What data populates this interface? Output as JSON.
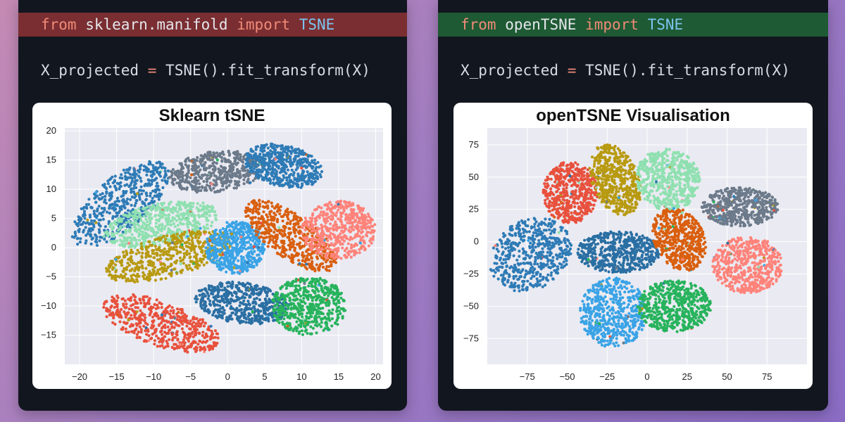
{
  "left": {
    "import_line": {
      "from": "from",
      "module": "sklearn.manifold",
      "import": "import",
      "cls": "TSNE"
    },
    "code_line": {
      "var": "X_projected",
      "eq": "=",
      "expr": "TSNE().fit_transform(X)"
    },
    "highlight_color": "#7a2e31"
  },
  "right": {
    "import_line": {
      "from": "from",
      "module": "openTSNE",
      "import": "import",
      "cls": "TSNE"
    },
    "code_line": {
      "var": "X_projected",
      "eq": "=",
      "expr": "TSNE().fit_transform(X)"
    },
    "highlight_color": "#1e5a33"
  },
  "chart_data": [
    {
      "type": "scatter",
      "title": "Sklearn tSNE",
      "xlabel": "",
      "ylabel": "",
      "xlim": [
        -22,
        21
      ],
      "ylim": [
        -20,
        20.5
      ],
      "xticks": [
        -20,
        -15,
        -10,
        -5,
        0,
        5,
        10,
        15,
        20
      ],
      "yticks": [
        20,
        15,
        10,
        5,
        0,
        -5,
        -10,
        -15
      ],
      "grid": true,
      "clusters": [
        {
          "color": "#2e7bb6",
          "center": [
            -14.5,
            7.5
          ],
          "radius": [
            4,
            9
          ],
          "angle": -40
        },
        {
          "color": "#6c7a8a",
          "center": [
            -1.5,
            13
          ],
          "radius": [
            6.5,
            3.5
          ],
          "angle": 10
        },
        {
          "color": "#2e7bb6",
          "center": [
            7.5,
            14
          ],
          "radius": [
            5.5,
            3.5
          ],
          "angle": -20
        },
        {
          "color": "#8fe0b0",
          "center": [
            -9,
            4
          ],
          "radius": [
            8,
            3.5
          ],
          "angle": 15
        },
        {
          "color": "#b89a10",
          "center": [
            -8,
            -1.5
          ],
          "radius": [
            9,
            3.5
          ],
          "angle": 20
        },
        {
          "color": "#3aa3e6",
          "center": [
            1,
            0
          ],
          "radius": [
            4,
            4.5
          ],
          "angle": 0
        },
        {
          "color": "#d95f0e",
          "center": [
            8.5,
            2
          ],
          "radius": [
            8,
            3.5
          ],
          "angle": -45
        },
        {
          "color": "#ff837a",
          "center": [
            15,
            3
          ],
          "radius": [
            5,
            5
          ],
          "angle": 0
        },
        {
          "color": "#2a6fa3",
          "center": [
            2,
            -9.5
          ],
          "radius": [
            6.5,
            3.5
          ],
          "angle": -10
        },
        {
          "color": "#27b35c",
          "center": [
            11,
            -10
          ],
          "radius": [
            5,
            5
          ],
          "angle": 0
        },
        {
          "color": "#e8513d",
          "center": [
            -9,
            -13
          ],
          "radius": [
            8.5,
            3.8
          ],
          "angle": -25
        }
      ]
    },
    {
      "type": "scatter",
      "title": "openTSNE Visualisation",
      "xlabel": "",
      "ylabel": "",
      "xlim": [
        -100,
        100
      ],
      "ylim": [
        -95,
        88
      ],
      "xticks": [
        -75,
        -50,
        -25,
        0,
        25,
        50,
        75
      ],
      "yticks": [
        75,
        50,
        25,
        0,
        -25,
        -50,
        -75
      ],
      "grid": true,
      "clusters": [
        {
          "color": "#e8513d",
          "center": [
            -48,
            38
          ],
          "radius": [
            17,
            24
          ],
          "angle": 0
        },
        {
          "color": "#b89a10",
          "center": [
            -20,
            48
          ],
          "radius": [
            15,
            28
          ],
          "angle": 15
        },
        {
          "color": "#8fe0b0",
          "center": [
            13,
            48
          ],
          "radius": [
            20,
            24
          ],
          "angle": 10
        },
        {
          "color": "#6c7a8a",
          "center": [
            58,
            27
          ],
          "radius": [
            24,
            15
          ],
          "angle": 0
        },
        {
          "color": "#2e7bb6",
          "center": [
            -73,
            -10
          ],
          "radius": [
            24,
            30
          ],
          "angle": -30
        },
        {
          "color": "#2a6fa3",
          "center": [
            -18,
            -8
          ],
          "radius": [
            26,
            16
          ],
          "angle": 0
        },
        {
          "color": "#d95f0e",
          "center": [
            20,
            2
          ],
          "radius": [
            16,
            25
          ],
          "angle": 15
        },
        {
          "color": "#ff837a",
          "center": [
            63,
            -18
          ],
          "radius": [
            22,
            22
          ],
          "angle": 0
        },
        {
          "color": "#3aa3e6",
          "center": [
            -21,
            -55
          ],
          "radius": [
            21,
            27
          ],
          "angle": 0
        },
        {
          "color": "#27b35c",
          "center": [
            17,
            -50
          ],
          "radius": [
            23,
            20
          ],
          "angle": 0
        }
      ]
    }
  ]
}
